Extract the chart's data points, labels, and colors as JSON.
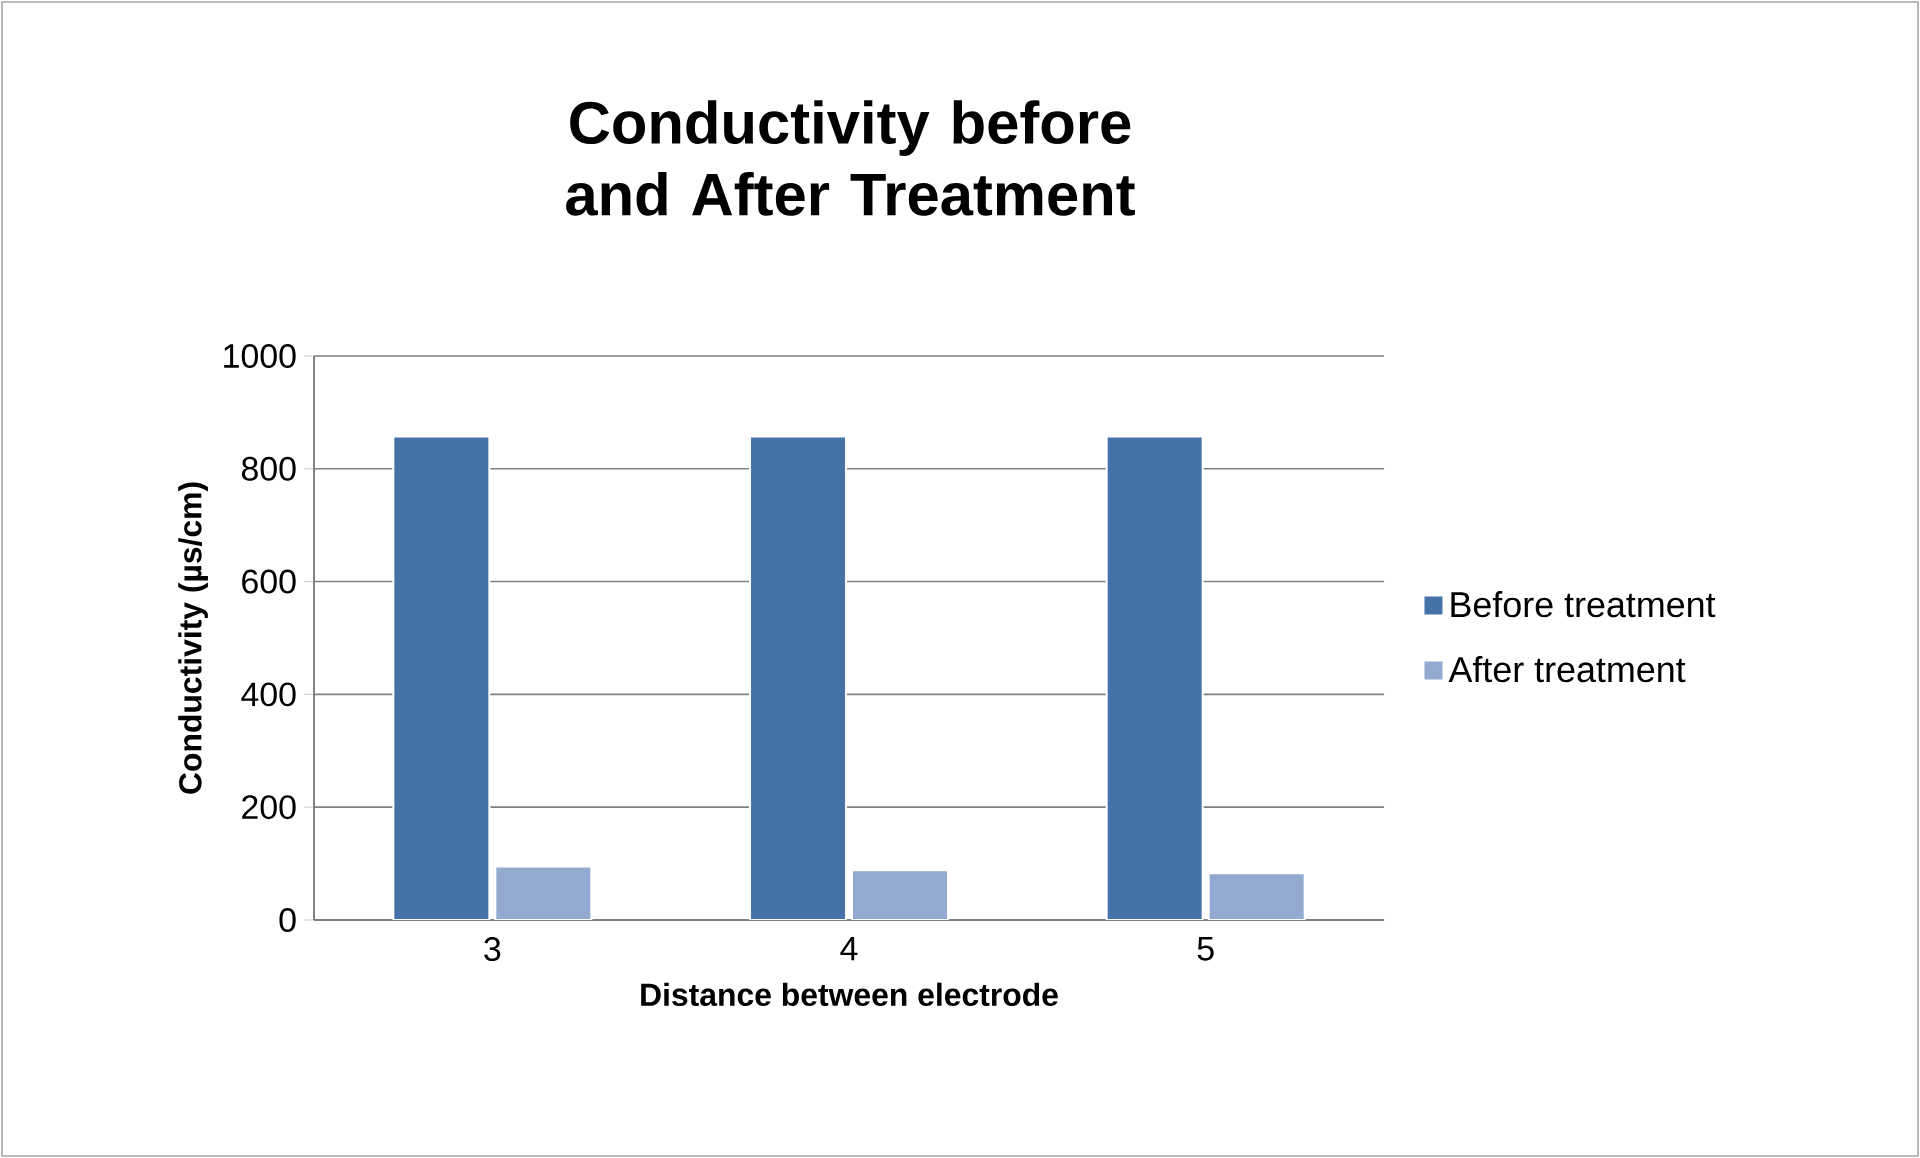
{
  "chart_data": {
    "type": "bar",
    "title": "Conductivity before and After Treatment",
    "xlabel": "Distance between electrode",
    "ylabel": "Conductivity (µs/cm)",
    "categories": [
      "3",
      "4",
      "5"
    ],
    "series": [
      {
        "name": "Before treatment",
        "color": "#4572a7",
        "values": [
          857,
          857,
          857
        ]
      },
      {
        "name": "After treatment",
        "color": "#93a9cf",
        "values": [
          95,
          88,
          83
        ]
      }
    ],
    "ylim": [
      0,
      1000
    ],
    "yticks": [
      0,
      200,
      400,
      600,
      800,
      1000
    ],
    "grid": "y",
    "legend": "right"
  }
}
